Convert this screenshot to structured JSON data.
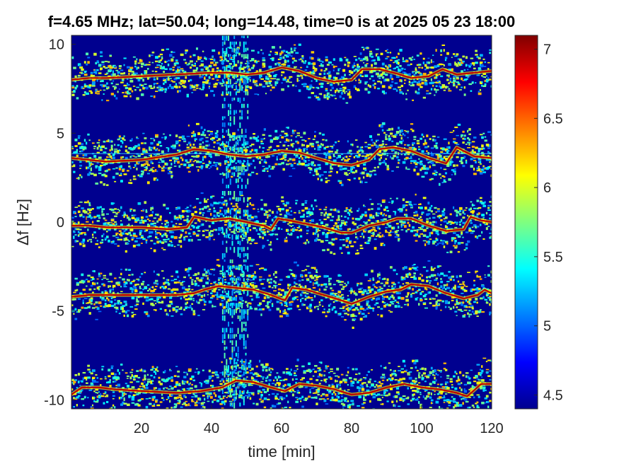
{
  "chart_data": {
    "type": "heatmap",
    "title": "f=4.65 MHz;  lat=50.04; long=14.48, time=0 is at 2025 05 23 18:00",
    "xlabel": "time [min]",
    "ylabel": "Δf [Hz]",
    "xlim": [
      0,
      120
    ],
    "ylim": [
      -10.5,
      10.5
    ],
    "xticks": [
      20,
      40,
      60,
      80,
      100,
      120
    ],
    "yticks": [
      -10,
      -5,
      0,
      5,
      10
    ],
    "xtick_labels": [
      "20",
      "40",
      "60",
      "80",
      "100",
      "120"
    ],
    "ytick_labels": [
      "-10",
      "-5",
      "0",
      "5",
      "10"
    ],
    "colormap": "jet",
    "clim": [
      4.4,
      7.1
    ],
    "colorbar_ticks": [
      4.5,
      5,
      5.5,
      6,
      6.5,
      7
    ],
    "colorbar_tick_labels": [
      "4.5",
      "5",
      "5.5",
      "6",
      "6.5",
      "7"
    ],
    "background_color": "#00008f",
    "traces": [
      {
        "points": [
          [
            0,
            8.0
          ],
          [
            5,
            8.1
          ],
          [
            10,
            8.1
          ],
          [
            20,
            8.2
          ],
          [
            30,
            8.3
          ],
          [
            40,
            8.4
          ],
          [
            45,
            8.4
          ],
          [
            50,
            8.3
          ],
          [
            55,
            8.4
          ],
          [
            60,
            8.7
          ],
          [
            65,
            8.5
          ],
          [
            70,
            8.1
          ],
          [
            75,
            7.9
          ],
          [
            80,
            8.0
          ],
          [
            83,
            8.6
          ],
          [
            88,
            8.6
          ],
          [
            92,
            8.4
          ],
          [
            97,
            8.1
          ],
          [
            102,
            8.2
          ],
          [
            106,
            8.6
          ],
          [
            110,
            8.3
          ],
          [
            115,
            8.4
          ],
          [
            120,
            8.5
          ]
        ]
      },
      {
        "points": [
          [
            0,
            3.6
          ],
          [
            5,
            3.5
          ],
          [
            10,
            3.4
          ],
          [
            20,
            3.5
          ],
          [
            30,
            3.8
          ],
          [
            35,
            4.1
          ],
          [
            40,
            4.0
          ],
          [
            45,
            3.8
          ],
          [
            50,
            3.7
          ],
          [
            55,
            3.8
          ],
          [
            60,
            4.0
          ],
          [
            65,
            3.9
          ],
          [
            70,
            3.6
          ],
          [
            75,
            3.3
          ],
          [
            80,
            3.2
          ],
          [
            85,
            3.5
          ],
          [
            88,
            4.1
          ],
          [
            92,
            4.2
          ],
          [
            97,
            4.0
          ],
          [
            102,
            3.6
          ],
          [
            107,
            3.3
          ],
          [
            110,
            4.2
          ],
          [
            115,
            3.7
          ],
          [
            120,
            3.6
          ]
        ]
      },
      {
        "points": [
          [
            0,
            -0.2
          ],
          [
            5,
            -0.2
          ],
          [
            10,
            -0.3
          ],
          [
            20,
            -0.3
          ],
          [
            28,
            -0.4
          ],
          [
            33,
            -0.3
          ],
          [
            35,
            0.3
          ],
          [
            40,
            0.1
          ],
          [
            45,
            0.2
          ],
          [
            50,
            0.0
          ],
          [
            55,
            -0.2
          ],
          [
            57,
            -0.4
          ],
          [
            59,
            0.2
          ],
          [
            62,
            0.1
          ],
          [
            67,
            -0.1
          ],
          [
            72,
            -0.3
          ],
          [
            77,
            -0.6
          ],
          [
            80,
            -0.6
          ],
          [
            85,
            -0.2
          ],
          [
            90,
            0.0
          ],
          [
            93,
            0.2
          ],
          [
            97,
            0.2
          ],
          [
            102,
            -0.2
          ],
          [
            107,
            -0.5
          ],
          [
            112,
            -0.4
          ],
          [
            114,
            0.3
          ],
          [
            117,
            0.1
          ],
          [
            120,
            0.0
          ]
        ]
      },
      {
        "points": [
          [
            0,
            -4.2
          ],
          [
            5,
            -4.1
          ],
          [
            10,
            -4.1
          ],
          [
            20,
            -4.1
          ],
          [
            30,
            -4.1
          ],
          [
            35,
            -4.0
          ],
          [
            38,
            -3.8
          ],
          [
            42,
            -3.6
          ],
          [
            47,
            -3.7
          ],
          [
            52,
            -3.8
          ],
          [
            57,
            -4.1
          ],
          [
            61,
            -4.4
          ],
          [
            63,
            -3.7
          ],
          [
            67,
            -3.8
          ],
          [
            72,
            -4.1
          ],
          [
            77,
            -4.4
          ],
          [
            80,
            -4.6
          ],
          [
            85,
            -4.2
          ],
          [
            90,
            -3.9
          ],
          [
            94,
            -3.8
          ],
          [
            97,
            -3.5
          ],
          [
            102,
            -3.6
          ],
          [
            107,
            -4.0
          ],
          [
            112,
            -4.3
          ],
          [
            116,
            -4.1
          ],
          [
            118,
            -3.8
          ],
          [
            120,
            -4.0
          ]
        ]
      },
      {
        "points": [
          [
            0,
            -9.7
          ],
          [
            3,
            -9.3
          ],
          [
            8,
            -9.3
          ],
          [
            12,
            -9.4
          ],
          [
            20,
            -9.5
          ],
          [
            30,
            -9.6
          ],
          [
            37,
            -9.5
          ],
          [
            40,
            -9.4
          ],
          [
            43,
            -9.3
          ],
          [
            47,
            -8.9
          ],
          [
            52,
            -9.0
          ],
          [
            57,
            -9.3
          ],
          [
            61,
            -9.5
          ],
          [
            65,
            -9.1
          ],
          [
            70,
            -9.2
          ],
          [
            75,
            -9.4
          ],
          [
            80,
            -9.7
          ],
          [
            85,
            -9.6
          ],
          [
            90,
            -9.3
          ],
          [
            95,
            -9.1
          ],
          [
            100,
            -9.3
          ],
          [
            105,
            -9.4
          ],
          [
            110,
            -9.6
          ],
          [
            113,
            -9.8
          ],
          [
            117,
            -9.1
          ],
          [
            120,
            -9.1
          ]
        ]
      }
    ]
  }
}
